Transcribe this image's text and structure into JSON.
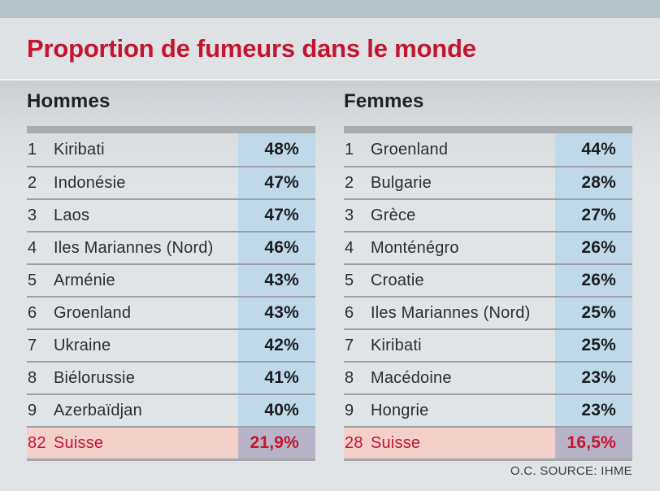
{
  "title": "Proportion de fumeurs dans le monde",
  "source": "O.C. SOURCE: IHME",
  "colors": {
    "top_bar": "#b7c3ca",
    "title_band": "#dee2e5",
    "title_red": "#c41430",
    "background": "#e1e4e6",
    "percent_cell_blue": "#bfd9e9",
    "table_top_bar": "#a9acaf",
    "row_separator": "#9ba1a6",
    "highlight_name_bg": "#f3d0ca",
    "highlight_percent_bg": "#b8b4c7",
    "highlight_text": "#c41430",
    "row_text": "#2d2d2e"
  },
  "chart_data": {
    "type": "table",
    "title": "Proportion de fumeurs dans le monde",
    "source": "O.C. SOURCE: IHME",
    "layout": "two side-by-side ranked tables, highlighted Switzerland row at bottom of each",
    "tables": [
      {
        "label": "Hommes",
        "columns": [
          "rang",
          "pays",
          "pourcentage"
        ],
        "rows": [
          {
            "rank": "1",
            "country": "Kiribati",
            "value": "48%"
          },
          {
            "rank": "2",
            "country": "Indonésie",
            "value": "47%"
          },
          {
            "rank": "3",
            "country": "Laos",
            "value": "47%"
          },
          {
            "rank": "4",
            "country": "Iles Mariannes (Nord)",
            "value": "46%"
          },
          {
            "rank": "5",
            "country": "Arménie",
            "value": "43%"
          },
          {
            "rank": "6",
            "country": "Groenland",
            "value": "43%"
          },
          {
            "rank": "7",
            "country": "Ukraine",
            "value": "42%"
          },
          {
            "rank": "8",
            "country": "Biélorussie",
            "value": "41%"
          },
          {
            "rank": "9",
            "country": "Azerbaïdjan",
            "value": "40%"
          }
        ],
        "highlight_row": {
          "rank": "82",
          "country": "Suisse",
          "value": "21,9%"
        }
      },
      {
        "label": "Femmes",
        "columns": [
          "rang",
          "pays",
          "pourcentage"
        ],
        "rows": [
          {
            "rank": "1",
            "country": "Groenland",
            "value": "44%"
          },
          {
            "rank": "2",
            "country": "Bulgarie",
            "value": "28%"
          },
          {
            "rank": "3",
            "country": "Grèce",
            "value": "27%"
          },
          {
            "rank": "4",
            "country": "Monténégro",
            "value": "26%"
          },
          {
            "rank": "5",
            "country": "Croatie",
            "value": "26%"
          },
          {
            "rank": "6",
            "country": "Iles Mariannes (Nord)",
            "value": "25%"
          },
          {
            "rank": "7",
            "country": "Kiribati",
            "value": "25%"
          },
          {
            "rank": "8",
            "country": "Macédoine",
            "value": "23%"
          },
          {
            "rank": "9",
            "country": "Hongrie",
            "value": "23%"
          }
        ],
        "highlight_row": {
          "rank": "28",
          "country": "Suisse",
          "value": "16,5%"
        }
      }
    ]
  }
}
